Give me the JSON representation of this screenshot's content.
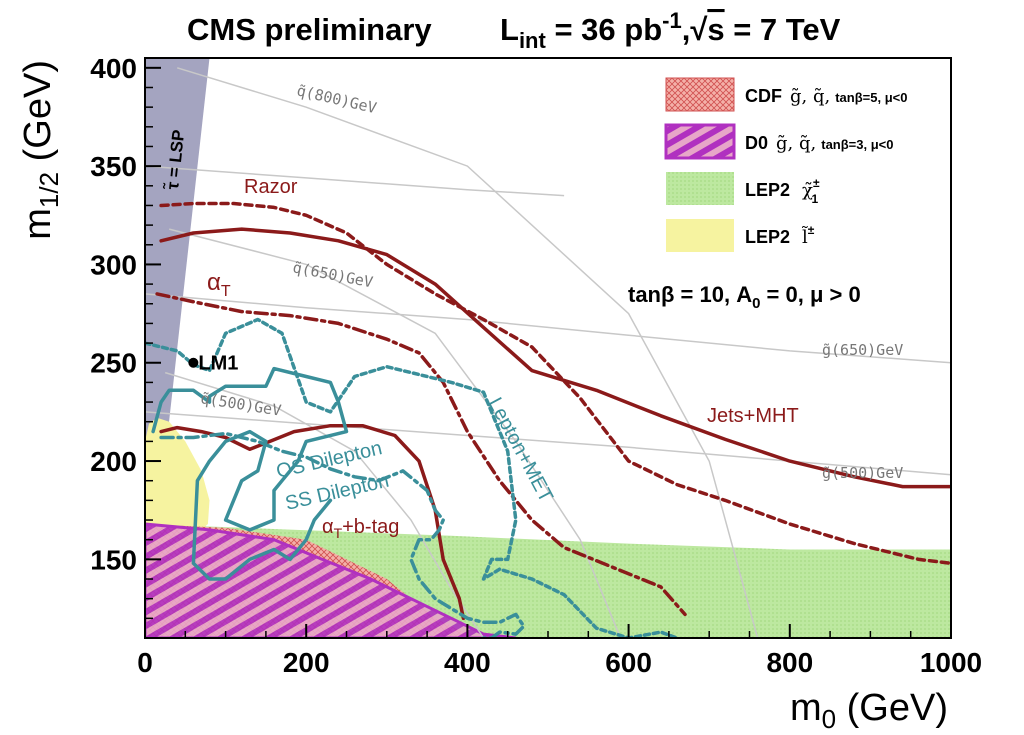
{
  "chart_data": {
    "type": "exclusion-contour",
    "title": "CMS preliminary",
    "luminosity": {
      "prefix": "L",
      "sub": "int",
      "value": " = 36 pb",
      "sup": "-1",
      "sep": ",",
      "sqrt": "√",
      "s": "s",
      "energy": " = 7 TeV"
    },
    "xlabel": {
      "main": "m",
      "sub": "0",
      "unit": " (GeV)"
    },
    "ylabel": {
      "main": "m",
      "sub": "1/2",
      "unit": " (GeV)"
    },
    "xlim": [
      0,
      1000
    ],
    "ylim": [
      110,
      405
    ],
    "x_ticks": [
      0,
      200,
      400,
      600,
      800,
      1000
    ],
    "x_tick_labels": [
      "0",
      "200",
      "400",
      "600",
      "800",
      "1000"
    ],
    "y_ticks": [
      150,
      200,
      250,
      300,
      350,
      400
    ],
    "y_tick_labels": [
      "150",
      "200",
      "250",
      "300",
      "350",
      "400"
    ],
    "parameters_label": {
      "a": "tanβ = 10, A",
      "sub": "0",
      "b": " = 0, μ > 0"
    },
    "lsp_label": "τ̃ = LSP",
    "benchmark": {
      "name": "LM1",
      "x": 60,
      "y": 250
    },
    "colors": {
      "razor": "#8b1a1a",
      "jets_mht": "#8b1a1a",
      "alpha_t": "#8b1a1a",
      "alpha_t_btag": "#8b1a1a",
      "lepton_met": "#3a8f9a",
      "os_dilepton": "#3a8f9a",
      "ss_dilepton": "#3a8f9a",
      "cdf": "#e08080",
      "d0": "#b030c0",
      "lep2_chargino": "#bde8a0",
      "lep2_slepton": "#f6f3a0",
      "lsp": "#a4a4c0",
      "iso": "#c8c8c8"
    },
    "legend": [
      {
        "label": "CDF",
        "particles": "g̃, q̃,",
        "params": "tanβ=5, μ<0"
      },
      {
        "label": "D0",
        "particles": "g̃, q̃,",
        "params": "tanβ=3, μ<0"
      },
      {
        "label": "LEP2",
        "particles": "χ̃",
        "sup": "±",
        "sub": "1"
      },
      {
        "label": "LEP2",
        "particles": "l̃",
        "sup": "±"
      }
    ],
    "series": [
      {
        "name": "Jets+MHT",
        "style": "solid",
        "label": "Jets+MHT",
        "x": [
          20,
          60,
          120,
          180,
          240,
          300,
          360,
          420,
          480,
          560,
          640,
          720,
          800,
          880,
          940,
          1000
        ],
        "y": [
          312,
          316,
          318,
          316,
          312,
          305,
          290,
          268,
          246,
          236,
          223,
          211,
          200,
          192,
          187,
          187
        ]
      },
      {
        "name": "Razor",
        "style": "dashed",
        "label": "Razor",
        "x": [
          20,
          60,
          110,
          160,
          200,
          250,
          300,
          360,
          420,
          480,
          540,
          600,
          660,
          720,
          800,
          880,
          960,
          1000
        ],
        "y": [
          330,
          331,
          331,
          329,
          325,
          316,
          300,
          285,
          272,
          258,
          232,
          200,
          188,
          180,
          168,
          158,
          150,
          148
        ]
      },
      {
        "name": "alpha_T",
        "style": "dashdot",
        "label": "α",
        "label_sub": "T",
        "x": [
          15,
          60,
          120,
          180,
          240,
          300,
          340,
          370,
          400,
          440,
          480,
          520,
          580,
          640,
          670
        ],
        "y": [
          285,
          281,
          276,
          274,
          270,
          262,
          255,
          240,
          215,
          190,
          170,
          156,
          146,
          136,
          122
        ]
      },
      {
        "name": "alpha_T+b-tag",
        "style": "solid",
        "label": "α",
        "label_sub": "T",
        "label_rest": "+b-tag",
        "x": [
          20,
          40,
          70,
          100,
          130,
          155,
          185,
          230,
          270,
          310,
          340,
          360,
          370,
          390,
          395
        ],
        "y": [
          215,
          217,
          215,
          212,
          206,
          210,
          215,
          218,
          218,
          213,
          200,
          175,
          150,
          130,
          120
        ]
      },
      {
        "name": "Lepton+MET",
        "style": "dotted",
        "label": "Lepton+MET",
        "x": [
          0,
          40,
          60,
          80,
          100,
          140,
          170,
          200,
          230,
          260,
          300,
          340,
          380,
          420,
          450,
          460,
          450,
          430,
          420,
          440,
          480,
          520,
          560,
          600,
          640,
          660
        ],
        "y": [
          260,
          256,
          249,
          246,
          265,
          272,
          265,
          230,
          225,
          243,
          248,
          244,
          240,
          235,
          205,
          170,
          150,
          150,
          140,
          145,
          140,
          132,
          115,
          110,
          113,
          110
        ]
      },
      {
        "name": "OS Dilepton",
        "style": "solid",
        "label": "OS Dilepton",
        "x": [
          10,
          20,
          30,
          60,
          80,
          80,
          100,
          150,
          160,
          200,
          230,
          240,
          250,
          200,
          190,
          170,
          160,
          160,
          130,
          100,
          120,
          140,
          150,
          130,
          100,
          80,
          65,
          60,
          80,
          100,
          130,
          160,
          180,
          200,
          210,
          230
        ],
        "y": [
          215,
          230,
          236,
          236,
          230,
          233,
          238,
          238,
          247,
          243,
          240,
          230,
          215,
          210,
          200,
          190,
          185,
          170,
          165,
          170,
          190,
          195,
          210,
          215,
          210,
          200,
          190,
          148,
          140,
          140,
          150,
          155,
          150,
          160,
          170,
          180
        ]
      },
      {
        "name": "SS Dilepton",
        "style": "dashdot",
        "label": "SS Dilepton",
        "x": [
          20,
          60,
          100,
          140,
          170,
          200,
          230,
          260,
          290,
          320,
          350,
          360,
          370,
          365,
          355,
          340,
          330,
          340,
          360,
          380,
          400,
          420,
          440,
          460,
          470,
          460,
          440,
          430,
          420
        ],
        "y": [
          212,
          212,
          214,
          210,
          205,
          202,
          196,
          192,
          190,
          195,
          185,
          175,
          170,
          165,
          160,
          160,
          150,
          140,
          130,
          125,
          120,
          118,
          118,
          122,
          116,
          112,
          113,
          110,
          110
        ]
      }
    ],
    "regions": [
      {
        "name": "CDF",
        "style": "crosshatch",
        "x": [
          0,
          100,
          200,
          300,
          360,
          400,
          405,
          0
        ],
        "y": [
          168,
          166,
          160,
          140,
          120,
          112,
          110,
          110
        ]
      },
      {
        "name": "D0",
        "style": "diagonal-hatch",
        "x": [
          0,
          80,
          160,
          220,
          280,
          330,
          380,
          420,
          460,
          0
        ],
        "y": [
          168,
          165,
          160,
          150,
          140,
          130,
          120,
          112,
          110,
          110
        ]
      },
      {
        "name": "LEP2 chargino",
        "style": "filled",
        "x": [
          0,
          380,
          600,
          800,
          1000,
          1000,
          0
        ],
        "y": [
          168,
          162,
          158,
          155,
          155,
          110,
          110
        ]
      },
      {
        "name": "LEP2 slepton",
        "style": "filled",
        "x": [
          0,
          5,
          15,
          30,
          50,
          70,
          80,
          78,
          70,
          0
        ],
        "y": [
          210,
          219,
          222,
          220,
          210,
          195,
          180,
          168,
          165,
          165
        ]
      },
      {
        "name": "stau LSP",
        "style": "filled",
        "x": [
          0,
          80,
          0
        ],
        "y": [
          110,
          405,
          405
        ]
      }
    ],
    "isolines": [
      {
        "name": "squark 800 GeV",
        "label": "q̃(800)GeV",
        "x": [
          40,
          200,
          400,
          600,
          700,
          760
        ],
        "y": [
          400,
          380,
          350,
          275,
          200,
          110
        ]
      },
      {
        "name": "squark 650 GeV",
        "label": "q̃(650)GeV",
        "x": [
          30,
          200,
          360,
          460,
          540,
          590
        ],
        "y": [
          318,
          300,
          265,
          210,
          160,
          110
        ]
      },
      {
        "name": "squark 500 GeV",
        "label": "q̃(500)GeV",
        "x": [
          25,
          160,
          260,
          330,
          380,
          420
        ],
        "y": [
          245,
          228,
          205,
          170,
          135,
          110
        ]
      },
      {
        "name": "gluino 650 GeV",
        "label": "g̃(650)GeV",
        "x": [
          0,
          200,
          400,
          600,
          800,
          1000
        ],
        "y": [
          285,
          278,
          272,
          264,
          256,
          250
        ]
      },
      {
        "name": "gluino 500 GeV",
        "label": "g̃(500)GeV",
        "x": [
          0,
          200,
          400,
          600,
          800,
          1000
        ],
        "y": [
          225,
          219,
          213,
          207,
          200,
          193
        ]
      },
      {
        "name": "gluino 800 GeV",
        "label": "",
        "x": [
          0,
          200,
          400,
          520
        ],
        "y": [
          350,
          344,
          338,
          335
        ]
      }
    ],
    "annotations": {
      "razor": "Razor",
      "jets_mht": "Jets+MHT",
      "lepton_met": "Lepton+MET",
      "os_dilepton": "OS Dilepton",
      "ss_dilepton": "SS Dilepton",
      "alpha_t": {
        "a": "α",
        "sub": "T"
      },
      "alpha_t_btag": {
        "a": "α",
        "sub": "T",
        "rest": "+b-tag"
      },
      "iso_q800": "q̃(800)GeV",
      "iso_q650": "q̃(650)GeV",
      "iso_q500": "q̃(500)GeV",
      "iso_g650": "g̃(650)GeV",
      "iso_g500": "g̃(500)GeV"
    }
  }
}
